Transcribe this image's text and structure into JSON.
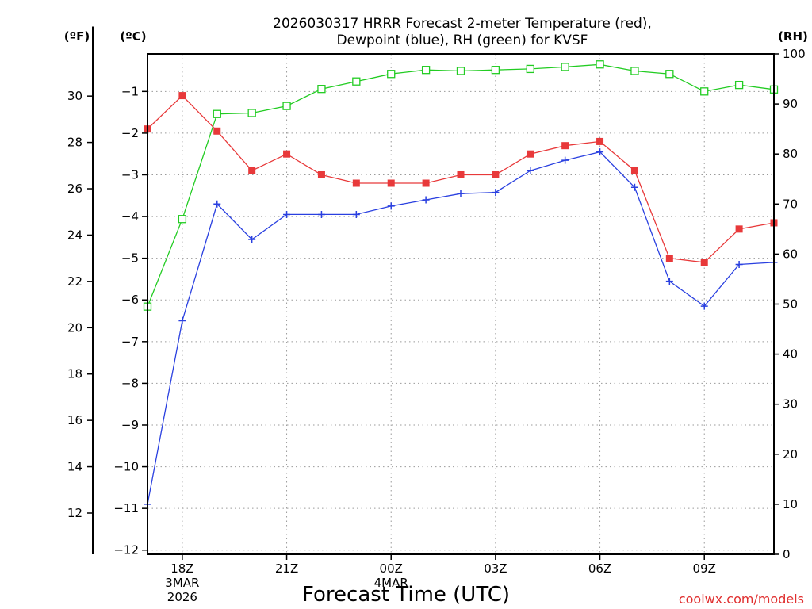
{
  "chart_data": {
    "type": "line",
    "title_line1": "2026030317 HRRR Forecast 2-meter Temperature (red),",
    "title_line2": "Dewpoint (blue), RH (green) for KVSF",
    "units": {
      "f": "(ºF)",
      "c": "(ºC)",
      "rh": "(RH)"
    },
    "xlabel": "Forecast Time (UTC)",
    "credit": "coolwx.com/models",
    "x_ticks": [
      {
        "hour": 1,
        "label": "18Z",
        "sub1": "3MAR",
        "sub2": "2026"
      },
      {
        "hour": 4,
        "label": "21Z",
        "sub1": "",
        "sub2": ""
      },
      {
        "hour": 7,
        "label": "00Z",
        "sub1": "4MAR",
        "sub2": ""
      },
      {
        "hour": 10,
        "label": "03Z",
        "sub1": "",
        "sub2": ""
      },
      {
        "hour": 13,
        "label": "06Z",
        "sub1": "",
        "sub2": ""
      },
      {
        "hour": 16,
        "label": "09Z",
        "sub1": "",
        "sub2": ""
      }
    ],
    "x_hours": [
      0,
      1,
      2,
      3,
      4,
      5,
      6,
      7,
      8,
      9,
      10,
      11,
      12,
      13,
      14,
      15,
      16,
      17,
      18
    ],
    "x_range": [
      0,
      18
    ],
    "c_range": [
      -12.1,
      -0.1
    ],
    "c_ticks": [
      "-1",
      "-2",
      "-3",
      "-4",
      "-5",
      "-6",
      "-7",
      "-8",
      "-9",
      "-10",
      "-11",
      "-12"
    ],
    "f_ticks": [
      "30",
      "28",
      "26",
      "24",
      "22",
      "20",
      "18",
      "16",
      "14",
      "12"
    ],
    "rh_range": [
      0,
      100
    ],
    "rh_ticks": [
      "0",
      "10",
      "20",
      "30",
      "40",
      "50",
      "60",
      "70",
      "80",
      "90",
      "100"
    ],
    "grid": true,
    "series": [
      {
        "name": "Temperature",
        "color": "#e8393a",
        "marker": "filled-square",
        "values": [
          -1.9,
          -1.1,
          -1.95,
          -2.9,
          -2.5,
          -3.0,
          -3.2,
          -3.2,
          -3.2,
          -3.0,
          -3.0,
          -2.5,
          -2.3,
          -2.2,
          -2.9,
          -5.0,
          -5.1,
          -4.3,
          -4.15
        ]
      },
      {
        "name": "Dewpoint",
        "color": "#2a40e0",
        "marker": "plus",
        "values": [
          -10.9,
          -6.5,
          -3.7,
          -4.55,
          -3.95,
          -3.95,
          -3.95,
          -3.75,
          -3.6,
          -3.45,
          -3.42,
          -2.9,
          -2.65,
          -2.45,
          -3.3,
          -5.55,
          -6.15,
          -5.15,
          -5.1
        ]
      },
      {
        "name": "RH",
        "color": "#22cc22",
        "marker": "open-square",
        "values": [
          49.5,
          67,
          88,
          88.2,
          89.6,
          93,
          94.5,
          96,
          96.8,
          96.6,
          96.8,
          97,
          97.4,
          97.9,
          96.6,
          96,
          92.5,
          93.8,
          92.9
        ]
      }
    ]
  }
}
